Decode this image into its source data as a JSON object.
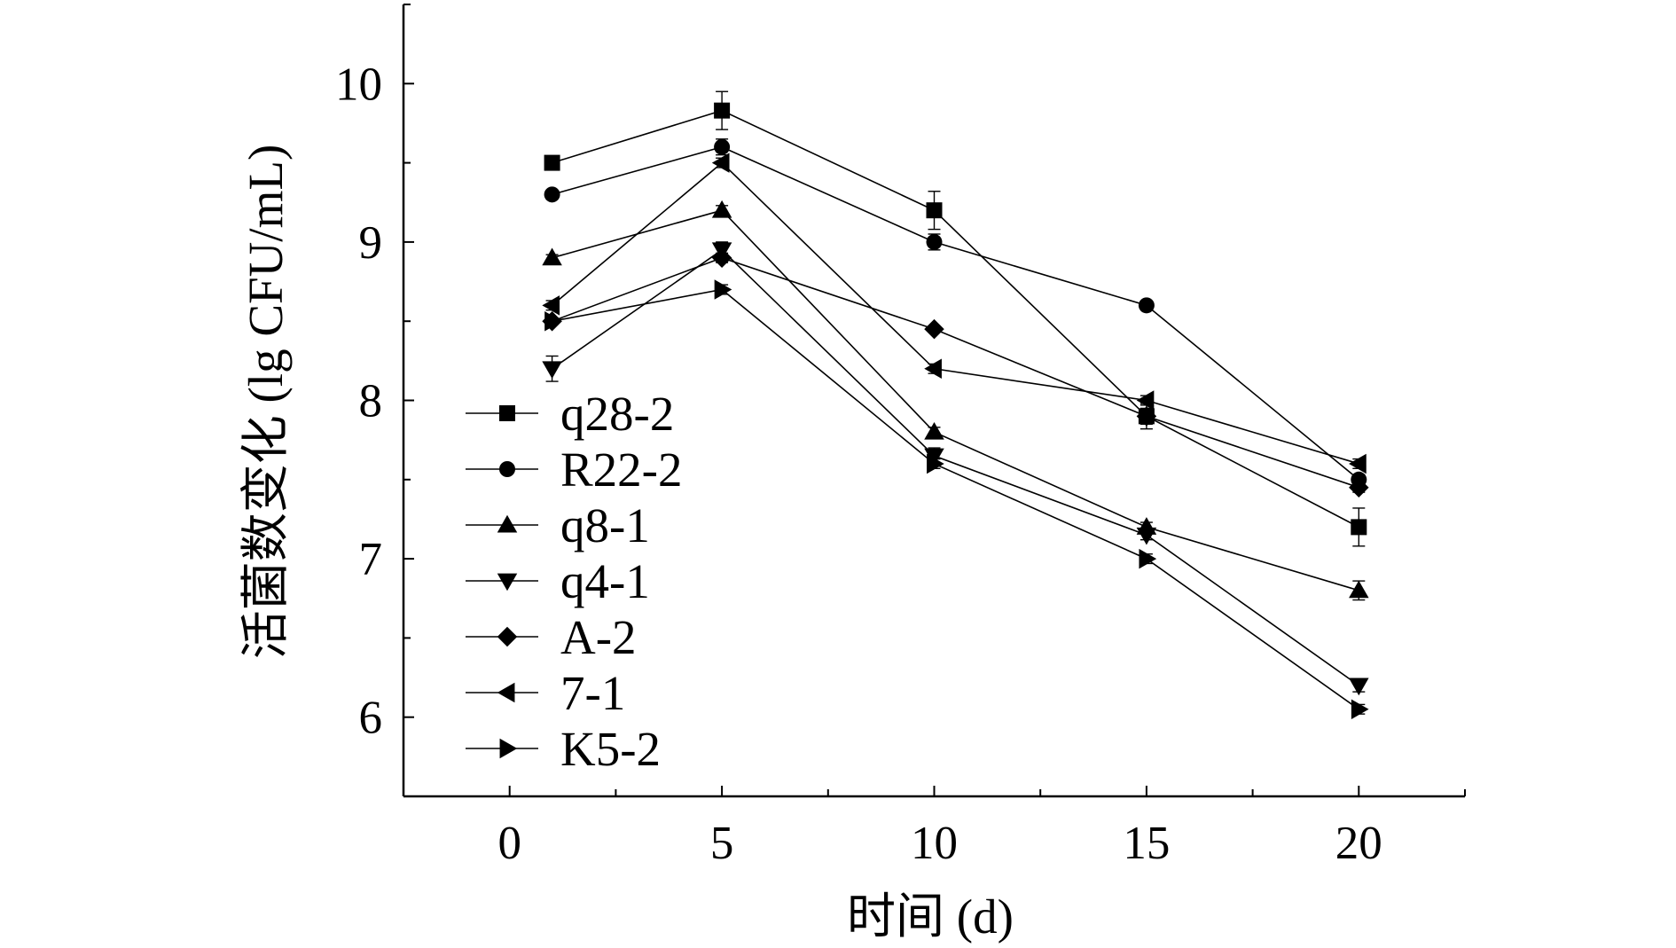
{
  "chart_data": {
    "type": "line",
    "title": "",
    "xlabel": "时间 (d)",
    "ylabel": "活菌数变化 (lg CFU/mL)",
    "xlim": [
      -2.5,
      22.5
    ],
    "ylim": [
      5.5,
      10.5
    ],
    "xticks": [
      0,
      5,
      10,
      15,
      20
    ],
    "xtick_labels": [
      "0",
      "5",
      "10",
      "15",
      "20"
    ],
    "yticks": [
      6,
      7,
      8,
      9,
      10
    ],
    "ytick_labels": [
      "6",
      "7",
      "8",
      "9",
      "10"
    ],
    "grid": false,
    "legend_position": "left",
    "x": [
      1,
      5,
      10,
      15,
      20
    ],
    "series": [
      {
        "name": "q28-2",
        "marker": "square",
        "values": [
          9.5,
          9.83,
          9.2,
          7.9,
          7.2
        ],
        "errors": [
          0.02,
          0.12,
          0.12,
          0.05,
          0.12
        ]
      },
      {
        "name": "R22-2",
        "marker": "circle",
        "values": [
          9.3,
          9.6,
          9.0,
          8.6,
          7.5
        ],
        "errors": [
          0.02,
          0.05,
          0.05,
          0.02,
          0.03
        ]
      },
      {
        "name": "q8-1",
        "marker": "triangle-up",
        "values": [
          8.9,
          9.2,
          7.8,
          7.2,
          6.8
        ],
        "errors": [
          0.02,
          0.03,
          0.03,
          0.03,
          0.06
        ]
      },
      {
        "name": "q4-1",
        "marker": "triangle-down",
        "values": [
          8.2,
          8.95,
          7.65,
          7.15,
          6.2
        ],
        "errors": [
          0.08,
          0.05,
          0.05,
          0.03,
          0.04
        ]
      },
      {
        "name": "A-2",
        "marker": "diamond",
        "values": [
          8.5,
          8.9,
          8.45,
          7.9,
          7.45
        ],
        "errors": [
          0.02,
          0.03,
          0.02,
          0.08,
          0.03
        ]
      },
      {
        "name": "7-1",
        "marker": "triangle-left",
        "values": [
          8.6,
          9.5,
          8.2,
          8.0,
          7.6
        ],
        "errors": [
          0.03,
          0.03,
          0.03,
          0.03,
          0.03
        ]
      },
      {
        "name": "K5-2",
        "marker": "triangle-right",
        "values": [
          8.5,
          8.7,
          7.6,
          7.0,
          6.05
        ],
        "errors": [
          0.02,
          0.03,
          0.03,
          0.03,
          0.03
        ]
      }
    ]
  }
}
